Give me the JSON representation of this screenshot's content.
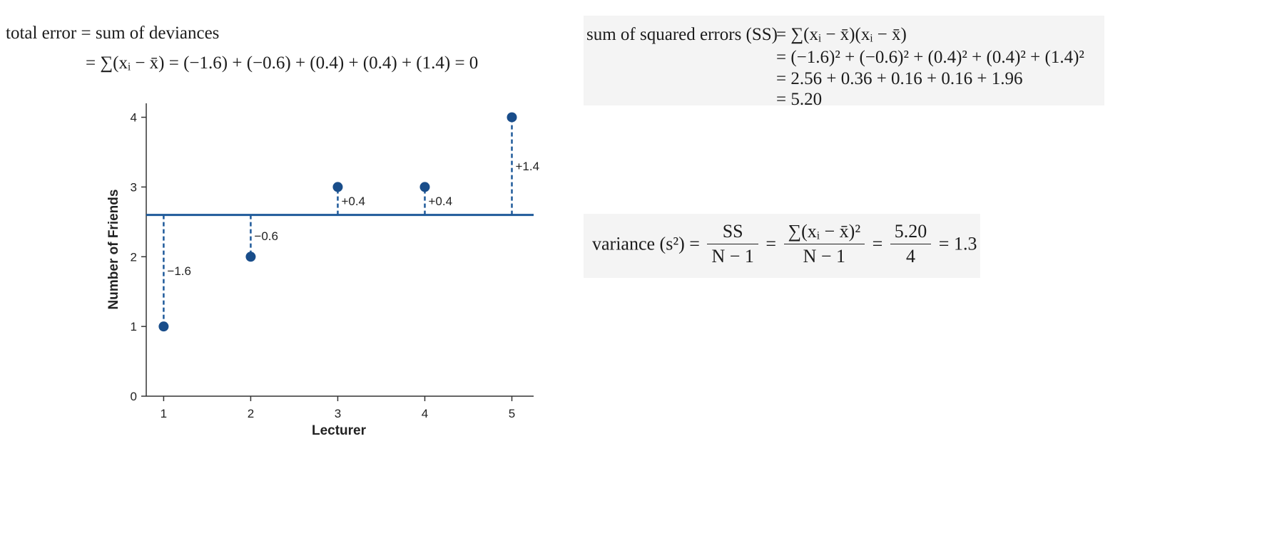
{
  "total_error": {
    "line1": "total error = sum of deviances",
    "line2": "= ∑(xᵢ − x̄) = (−1.6) + (−0.6) + (0.4) + (0.4) + (1.4) = 0"
  },
  "ss": {
    "label": "sum of squared errors (SS)",
    "line1": "= ∑(xᵢ − x̄)(xᵢ − x̄)",
    "line2": "= (−1.6)² + (−0.6)² + (0.4)² + (0.4)² + (1.4)²",
    "line3": "= 2.56 + 0.36 + 0.16 + 0.16 + 1.96",
    "line4": "= 5.20"
  },
  "variance": {
    "lhs": "variance (s²) =",
    "frac1_num": "SS",
    "frac1_den": "N − 1",
    "eq1": "=",
    "frac2_num": "∑(xᵢ − x̄)²",
    "frac2_den": "N − 1",
    "eq2": "=",
    "frac3_num": "5.20",
    "frac3_den": "4",
    "result": "= 1.3"
  },
  "colors": {
    "accent": "#1f5a9a",
    "marker": "#194d8a"
  },
  "chart_data": {
    "type": "scatter",
    "x": [
      1,
      2,
      3,
      4,
      5
    ],
    "y": [
      1,
      2,
      3,
      3,
      4
    ],
    "mean": 2.6,
    "deviation_labels": [
      "−1.6",
      "−0.6",
      "+0.4",
      "+0.4",
      "+1.4"
    ],
    "xticks": [
      "1",
      "2",
      "3",
      "4",
      "5"
    ],
    "yticks": [
      "0",
      "1",
      "2",
      "3",
      "4"
    ],
    "xlabel": "Lecturer",
    "ylabel": "Number of Friends",
    "xlim": [
      0.8,
      5.25
    ],
    "ylim": [
      0,
      4.2
    ],
    "grid": false
  }
}
